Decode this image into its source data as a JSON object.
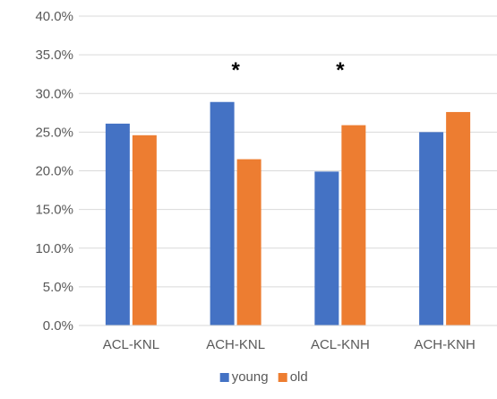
{
  "chart_data": {
    "type": "bar",
    "categories": [
      "ACL-KNL",
      "ACH-KNL",
      "ACL-KNH",
      "ACH-KNH"
    ],
    "series": [
      {
        "name": "young",
        "values": [
          26.1,
          28.9,
          19.9,
          25.0
        ],
        "color": "#4472C4"
      },
      {
        "name": "old",
        "values": [
          24.6,
          21.5,
          25.9,
          27.6
        ],
        "color": "#ED7D31"
      }
    ],
    "ylim": [
      0,
      40
    ],
    "yticks": [
      "0.0%",
      "5.0%",
      "10.0%",
      "15.0%",
      "20.0%",
      "25.0%",
      "30.0%",
      "35.0%",
      "40.0%"
    ],
    "ytick_values": [
      0,
      5,
      10,
      15,
      20,
      25,
      30,
      35,
      40
    ],
    "grid": true,
    "gridline_color": "#D9D9D9",
    "legend_position": "bottom",
    "annotations": [
      {
        "category": "ACH-KNL",
        "text": "*"
      },
      {
        "category": "ACL-KNH",
        "text": "*"
      }
    ],
    "title": "",
    "xlabel": "",
    "ylabel": ""
  }
}
